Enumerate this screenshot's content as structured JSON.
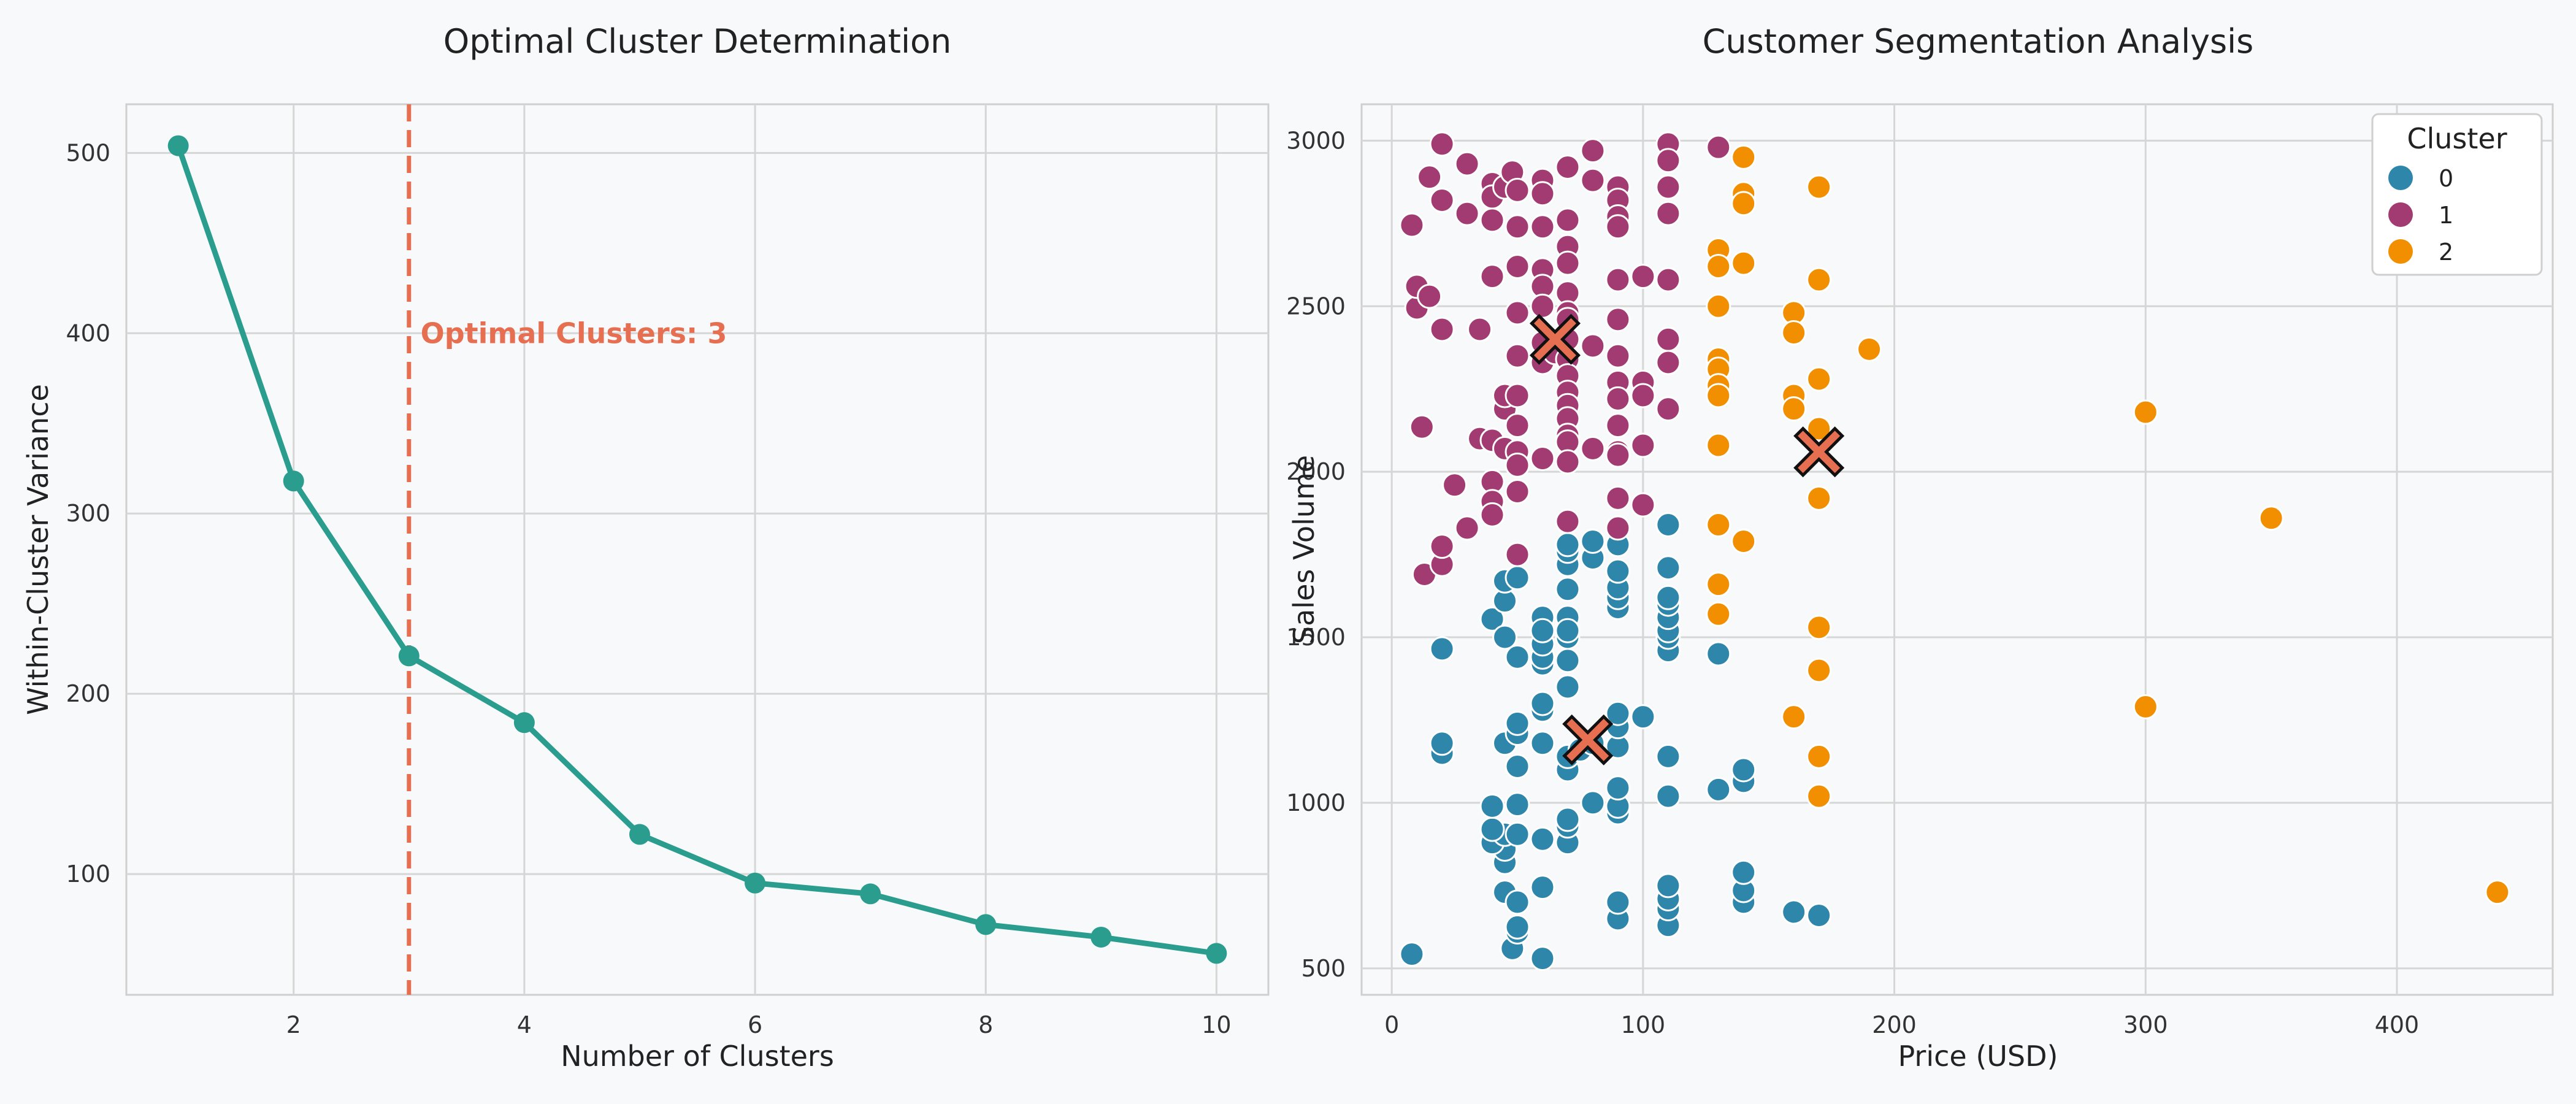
{
  "chart_data": [
    {
      "type": "line",
      "title": "Optimal Cluster Determination",
      "xlabel": "Number of Clusters",
      "ylabel": "Within-Cluster Variance",
      "x": [
        1,
        2,
        3,
        4,
        5,
        6,
        7,
        8,
        9,
        10
      ],
      "y": [
        504,
        318,
        221,
        184,
        122,
        95,
        89,
        72,
        65,
        56
      ],
      "xlim": [
        0.55,
        10.45
      ],
      "ylim": [
        33,
        527
      ],
      "xticks": [
        2,
        4,
        6,
        8,
        10
      ],
      "yticks": [
        100,
        200,
        300,
        400,
        500
      ],
      "grid": true,
      "color": "#2a9d8f",
      "vline": {
        "x": 3,
        "color": "#e76f51",
        "style": "dashed"
      },
      "annotation": {
        "text": "Optimal Clusters: 3",
        "x": 3.1,
        "y": 400,
        "color": "#e76f51"
      }
    },
    {
      "type": "scatter",
      "title": "Customer Segmentation Analysis",
      "xlabel": "Price (USD)",
      "ylabel": "Sales Volume",
      "xlim": [
        -12,
        462
      ],
      "ylim": [
        420,
        3110
      ],
      "xticks": [
        0,
        100,
        200,
        300,
        400
      ],
      "yticks": [
        500,
        1000,
        1500,
        2000,
        2500,
        3000
      ],
      "grid": true,
      "legend": {
        "title": "Cluster",
        "position": "top-right"
      },
      "series": [
        {
          "name": "0",
          "color": "#2e86ab",
          "points": [
            [
              8,
              543
            ],
            [
              60,
              530
            ],
            [
              48,
              560
            ],
            [
              50,
              610
            ],
            [
              50,
              625
            ],
            [
              60,
              745
            ],
            [
              45,
              730
            ],
            [
              50,
              700
            ],
            [
              45,
              820
            ],
            [
              45,
              860
            ],
            [
              40,
              880
            ],
            [
              45,
              905
            ],
            [
              40,
              920
            ],
            [
              50,
              905
            ],
            [
              40,
              990
            ],
            [
              50,
              995
            ],
            [
              60,
              890
            ],
            [
              70,
              880
            ],
            [
              70,
              930
            ],
            [
              70,
              950
            ],
            [
              80,
              1000
            ],
            [
              90,
              970
            ],
            [
              90,
              990
            ],
            [
              90,
              1045
            ],
            [
              90,
              650
            ],
            [
              90,
              700
            ],
            [
              110,
              630
            ],
            [
              110,
              680
            ],
            [
              110,
              710
            ],
            [
              110,
              750
            ],
            [
              140,
              700
            ],
            [
              140,
              735
            ],
            [
              140,
              790
            ],
            [
              160,
              670
            ],
            [
              170,
              660
            ],
            [
              110,
              1020
            ],
            [
              130,
              1040
            ],
            [
              140,
              1065
            ],
            [
              140,
              1100
            ],
            [
              20,
              1150
            ],
            [
              20,
              1180
            ],
            [
              45,
              1180
            ],
            [
              50,
              1210
            ],
            [
              50,
              1240
            ],
            [
              50,
              1110
            ],
            [
              60,
              1280
            ],
            [
              60,
              1300
            ],
            [
              70,
              1100
            ],
            [
              70,
              1140
            ],
            [
              75,
              1160
            ],
            [
              90,
              1170
            ],
            [
              90,
              1230
            ],
            [
              90,
              1270
            ],
            [
              100,
              1260
            ],
            [
              110,
              1140
            ],
            [
              40,
              1555
            ],
            [
              45,
              1500
            ],
            [
              50,
              1440
            ],
            [
              60,
              1420
            ],
            [
              60,
              1440
            ],
            [
              60,
              1480
            ],
            [
              60,
              1520
            ],
            [
              60,
              1560
            ],
            [
              70,
              1350
            ],
            [
              70,
              1430
            ],
            [
              70,
              1500
            ],
            [
              70,
              1530
            ],
            [
              70,
              1560
            ],
            [
              70,
              1645
            ],
            [
              70,
              1720
            ],
            [
              70,
              1760
            ],
            [
              70,
              1780
            ],
            [
              80,
              1740
            ],
            [
              80,
              1790
            ],
            [
              90,
              1590
            ],
            [
              90,
              1620
            ],
            [
              90,
              1650
            ],
            [
              90,
              1700
            ],
            [
              90,
              1780
            ],
            [
              110,
              1460
            ],
            [
              110,
              1500
            ],
            [
              110,
              1520
            ],
            [
              110,
              1560
            ],
            [
              110,
              1600
            ],
            [
              110,
              1620
            ],
            [
              110,
              1710
            ],
            [
              110,
              1840
            ],
            [
              130,
              1450
            ],
            [
              20,
              1465
            ],
            [
              45,
              1610
            ],
            [
              45,
              1670
            ],
            [
              50,
              1680
            ],
            [
              60,
              1520
            ],
            [
              70,
              1520
            ],
            [
              75,
              1160
            ],
            [
              80,
              1180
            ],
            [
              60,
              1180
            ]
          ]
        },
        {
          "name": "1",
          "color": "#a23b72",
          "points": [
            [
              8,
              2745
            ],
            [
              10,
              2495
            ],
            [
              10,
              2560
            ],
            [
              12,
              2135
            ],
            [
              13,
              1690
            ],
            [
              15,
              2890
            ],
            [
              15,
              2530
            ],
            [
              20,
              2990
            ],
            [
              20,
              2820
            ],
            [
              20,
              2430
            ],
            [
              20,
              1720
            ],
            [
              20,
              1775
            ],
            [
              25,
              1960
            ],
            [
              30,
              2780
            ],
            [
              30,
              2930
            ],
            [
              30,
              1830
            ],
            [
              35,
              2100
            ],
            [
              35,
              2430
            ],
            [
              40,
              2870
            ],
            [
              40,
              2830
            ],
            [
              40,
              2760
            ],
            [
              40,
              2590
            ],
            [
              40,
              2095
            ],
            [
              40,
              1970
            ],
            [
              40,
              1910
            ],
            [
              40,
              1870
            ],
            [
              45,
              2860
            ],
            [
              45,
              2070
            ],
            [
              45,
              2190
            ],
            [
              45,
              2230
            ],
            [
              48,
              2905
            ],
            [
              50,
              2850
            ],
            [
              50,
              2740
            ],
            [
              50,
              2620
            ],
            [
              50,
              2480
            ],
            [
              50,
              2350
            ],
            [
              50,
              2230
            ],
            [
              50,
              2140
            ],
            [
              50,
              2060
            ],
            [
              50,
              2020
            ],
            [
              50,
              1940
            ],
            [
              50,
              1750
            ],
            [
              60,
              2880
            ],
            [
              60,
              2840
            ],
            [
              60,
              2740
            ],
            [
              60,
              2610
            ],
            [
              60,
              2560
            ],
            [
              60,
              2500
            ],
            [
              60,
              2390
            ],
            [
              60,
              2330
            ],
            [
              60,
              2040
            ],
            [
              65,
              2360
            ],
            [
              70,
              2920
            ],
            [
              70,
              2760
            ],
            [
              70,
              2680
            ],
            [
              70,
              2630
            ],
            [
              70,
              2540
            ],
            [
              70,
              2480
            ],
            [
              70,
              2460
            ],
            [
              70,
              2400
            ],
            [
              70,
              2340
            ],
            [
              70,
              2290
            ],
            [
              70,
              2240
            ],
            [
              70,
              2200
            ],
            [
              70,
              2160
            ],
            [
              70,
              2110
            ],
            [
              70,
              2090
            ],
            [
              70,
              2030
            ],
            [
              70,
              1850
            ],
            [
              80,
              2970
            ],
            [
              80,
              2880
            ],
            [
              80,
              2380
            ],
            [
              80,
              2070
            ],
            [
              90,
              2860
            ],
            [
              90,
              2820
            ],
            [
              90,
              2770
            ],
            [
              90,
              2740
            ],
            [
              90,
              2580
            ],
            [
              90,
              2460
            ],
            [
              90,
              2350
            ],
            [
              90,
              2270
            ],
            [
              90,
              2220
            ],
            [
              90,
              2140
            ],
            [
              90,
              2060
            ],
            [
              90,
              2050
            ],
            [
              90,
              1920
            ],
            [
              90,
              1830
            ],
            [
              100,
              2590
            ],
            [
              100,
              2270
            ],
            [
              100,
              2230
            ],
            [
              100,
              2080
            ],
            [
              100,
              1900
            ],
            [
              110,
              2990
            ],
            [
              110,
              2940
            ],
            [
              110,
              2860
            ],
            [
              110,
              2780
            ],
            [
              110,
              2580
            ],
            [
              110,
              2400
            ],
            [
              110,
              2330
            ],
            [
              110,
              2190
            ],
            [
              130,
              2980
            ]
          ]
        },
        {
          "name": "2",
          "color": "#f18f01",
          "points": [
            [
              140,
              2950
            ],
            [
              140,
              2840
            ],
            [
              140,
              2810
            ],
            [
              140,
              2630
            ],
            [
              140,
              1790
            ],
            [
              130,
              2670
            ],
            [
              130,
              2620
            ],
            [
              130,
              2500
            ],
            [
              130,
              2340
            ],
            [
              130,
              2310
            ],
            [
              130,
              2260
            ],
            [
              130,
              2230
            ],
            [
              130,
              2080
            ],
            [
              130,
              1840
            ],
            [
              130,
              1660
            ],
            [
              130,
              1570
            ],
            [
              160,
              2480
            ],
            [
              160,
              2420
            ],
            [
              160,
              2230
            ],
            [
              160,
              2190
            ],
            [
              160,
              1260
            ],
            [
              170,
              2860
            ],
            [
              170,
              2580
            ],
            [
              170,
              2280
            ],
            [
              170,
              2130
            ],
            [
              170,
              1920
            ],
            [
              170,
              1530
            ],
            [
              170,
              1400
            ],
            [
              170,
              1140
            ],
            [
              170,
              1020
            ],
            [
              190,
              2370
            ],
            [
              300,
              2180
            ],
            [
              300,
              1290
            ],
            [
              350,
              1860
            ],
            [
              440,
              730
            ]
          ]
        }
      ],
      "centroids": {
        "color": "#e76f51",
        "marker": "X",
        "points": [
          [
            65,
            2400
          ],
          [
            170,
            2060
          ],
          [
            78,
            1190
          ]
        ]
      }
    }
  ]
}
